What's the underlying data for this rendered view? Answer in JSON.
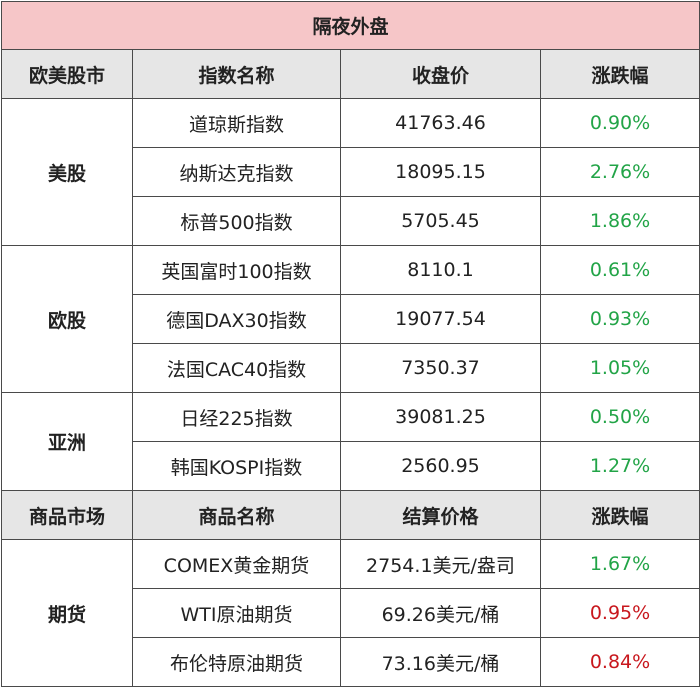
{
  "title": "隔夜外盘",
  "colors": {
    "title_bg": "#f6c6c8",
    "header_bg": "#e6e6e6",
    "up": "#22a447",
    "down": "#c8171d"
  },
  "index_header": [
    "欧美股市",
    "指数名称",
    "收盘价",
    "涨跌幅"
  ],
  "index_groups": [
    {
      "market": "美股",
      "rows": [
        {
          "name": "道琼斯指数",
          "close": "41763.46",
          "change": "0.90%",
          "dir": "up"
        },
        {
          "name": "纳斯达克指数",
          "close": "18095.15",
          "change": "2.76%",
          "dir": "up"
        },
        {
          "name": "标普500指数",
          "close": "5705.45",
          "change": "1.86%",
          "dir": "up"
        }
      ]
    },
    {
      "market": "欧股",
      "rows": [
        {
          "name": "英国富时100指数",
          "close": "8110.1",
          "change": "0.61%",
          "dir": "up"
        },
        {
          "name": "德国DAX30指数",
          "close": "19077.54",
          "change": "0.93%",
          "dir": "up"
        },
        {
          "name": "法国CAC40指数",
          "close": "7350.37",
          "change": "1.05%",
          "dir": "up"
        }
      ]
    },
    {
      "market": "亚洲",
      "rows": [
        {
          "name": "日经225指数",
          "close": "39081.25",
          "change": "0.50%",
          "dir": "up"
        },
        {
          "name": "韩国KOSPI指数",
          "close": "2560.95",
          "change": "1.27%",
          "dir": "up"
        }
      ]
    }
  ],
  "commodity_header": [
    "商品市场",
    "商品名称",
    "结算价格",
    "涨跌幅"
  ],
  "commodity_groups": [
    {
      "market": "期货",
      "rows": [
        {
          "name": "COMEX黄金期货",
          "close": "2754.1美元/盎司",
          "change": "1.67%",
          "dir": "up"
        },
        {
          "name": "WTI原油期货",
          "close": "69.26美元/桶",
          "change": "0.95%",
          "dir": "down"
        },
        {
          "name": "布伦特原油期货",
          "close": "73.16美元/桶",
          "change": "0.84%",
          "dir": "down"
        }
      ]
    }
  ]
}
